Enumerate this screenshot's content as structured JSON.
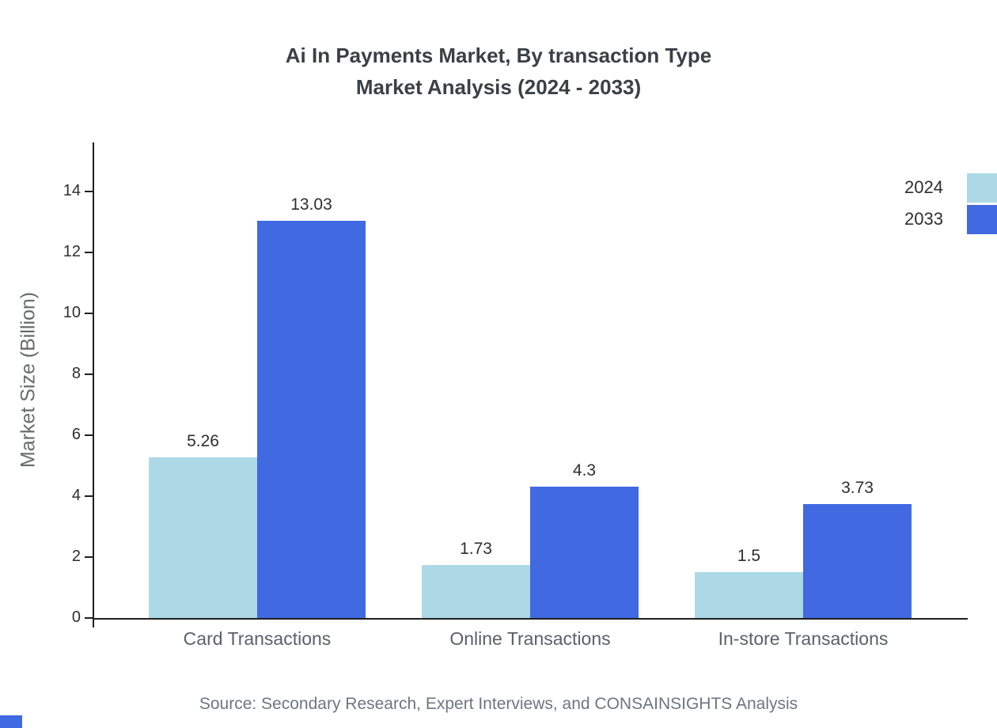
{
  "source": "Source: Secondary Research, Expert Interviews, and CONSAINSIGHTS Analysis",
  "colors": {
    "series_2024": "#ADD8E6",
    "series_2033": "#4169E1",
    "axis": "#1f1f1f",
    "title_text": "#3b4046",
    "muted_text": "#6c7680"
  },
  "chart_data": {
    "type": "bar",
    "title": "Ai In Payments Market, By transaction Type\nMarket Analysis (2024 - 2033)",
    "categories": [
      "Card Transactions",
      "Online Transactions",
      "In-store Transactions"
    ],
    "series": [
      {
        "name": "2024",
        "color": "#ADD8E6",
        "values": [
          5.26,
          1.73,
          1.5
        ]
      },
      {
        "name": "2033",
        "color": "#4169E1",
        "values": [
          13.03,
          4.3,
          3.73
        ]
      }
    ],
    "xlabel": "",
    "ylabel": "Market Size (Billion)",
    "yticks": [
      0,
      2,
      4,
      6,
      8,
      10,
      12,
      14
    ],
    "ylim": [
      0,
      15.6
    ],
    "grid": false,
    "legend_position": "top-right",
    "value_labels": true
  }
}
